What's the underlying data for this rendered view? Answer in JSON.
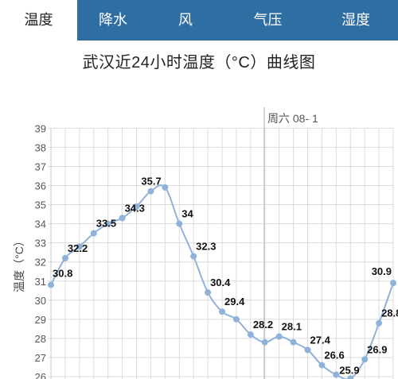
{
  "tabs": [
    {
      "label": "温度",
      "active": true
    },
    {
      "label": "降水",
      "active": false
    },
    {
      "label": "风",
      "active": false
    },
    {
      "label": "气压",
      "active": false
    },
    {
      "label": "湿度",
      "active": false
    }
  ],
  "colors": {
    "tab_bar": "#2f6ea3",
    "line": "#8fb2db",
    "point": "#8fb2db",
    "grid": "#dcdcdc"
  },
  "chart_data": {
    "type": "line",
    "title": "武汉近24小时温度（°C）曲线图",
    "ylabel": "温度（°C）",
    "xlabel": "",
    "day_marker": "周六 08- 1",
    "ylim": [
      26,
      39
    ],
    "yticks": [
      "26",
      "27",
      "28",
      "29",
      "30",
      "31",
      "32",
      "33",
      "34",
      "35",
      "36",
      "37",
      "38",
      "39"
    ],
    "grid": true,
    "series": [
      {
        "values": [
          30.8,
          32.2,
          32.8,
          33.5,
          34.0,
          34.3,
          34.9,
          35.7,
          35.9,
          34.0,
          32.3,
          30.4,
          29.4,
          29.0,
          28.2,
          27.8,
          28.1,
          27.8,
          27.4,
          26.6,
          26.1,
          25.9,
          26.9,
          28.8,
          30.9
        ],
        "labels": [
          "30.8",
          "32.2",
          "",
          "33.5",
          "",
          "34.3",
          "",
          "35.7",
          "",
          "34",
          "32.3",
          "30.4",
          "29.4",
          "",
          "28.2",
          "",
          "28.1",
          "",
          "27.4",
          "26.6",
          "",
          "25.9",
          "26.9",
          "28.8",
          "30.9"
        ]
      }
    ]
  }
}
